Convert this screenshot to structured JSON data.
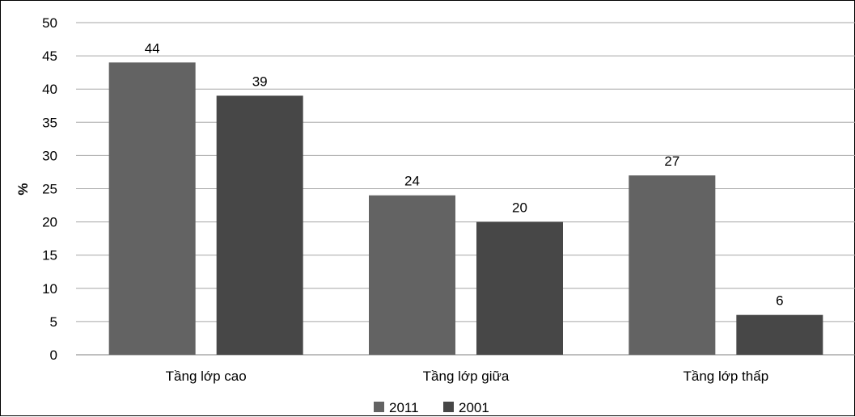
{
  "chart_data": {
    "type": "bar",
    "title": "",
    "xlabel": "",
    "ylabel": "%",
    "ylim": [
      0,
      50
    ],
    "ytick_step": 5,
    "grid": true,
    "legend_position": "bottom",
    "categories": [
      "Tầng lớp cao",
      "Tầng lớp giữa",
      "Tầng lớp thấp"
    ],
    "series": [
      {
        "name": "2011",
        "values": [
          44,
          24,
          27
        ],
        "color": "#636363"
      },
      {
        "name": "2001",
        "values": [
          39,
          20,
          6
        ],
        "color": "#474747"
      }
    ]
  }
}
